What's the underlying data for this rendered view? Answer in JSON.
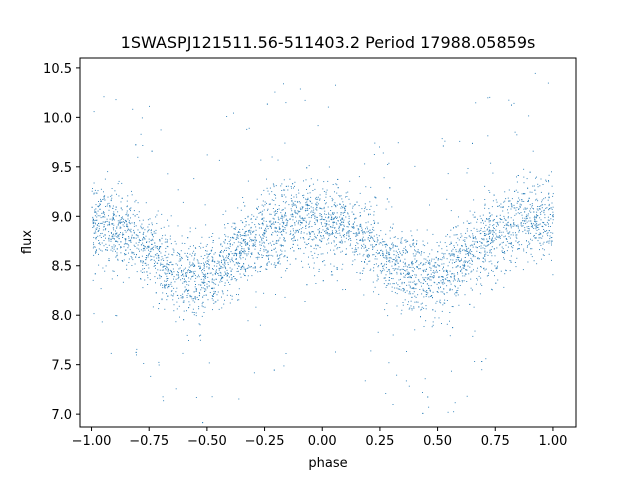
{
  "chart_data": {
    "type": "scatter",
    "title": "1SWASPJ121511.56-511403.2 Period 17988.05859s",
    "xlabel": "phase",
    "ylabel": "flux",
    "xlim": [
      -1.05,
      1.1
    ],
    "ylim": [
      6.87,
      10.6
    ],
    "grid": false,
    "point_color": "#1f77b4",
    "x_ticks": [
      {
        "value": -1.0,
        "label": "−1.00"
      },
      {
        "value": -0.75,
        "label": "−0.75"
      },
      {
        "value": -0.5,
        "label": "−0.50"
      },
      {
        "value": -0.25,
        "label": "−0.25"
      },
      {
        "value": 0.0,
        "label": "0.00"
      },
      {
        "value": 0.25,
        "label": "0.25"
      },
      {
        "value": 0.5,
        "label": "0.50"
      },
      {
        "value": 0.75,
        "label": "0.75"
      },
      {
        "value": 1.0,
        "label": "1.00"
      }
    ],
    "y_ticks": [
      {
        "value": 7.0,
        "label": "7.0"
      },
      {
        "value": 7.5,
        "label": "7.5"
      },
      {
        "value": 8.0,
        "label": "8.0"
      },
      {
        "value": 8.5,
        "label": "8.5"
      },
      {
        "value": 9.0,
        "label": "9.0"
      },
      {
        "value": 9.5,
        "label": "9.5"
      },
      {
        "value": 10.0,
        "label": "10.0"
      },
      {
        "value": 10.5,
        "label": "10.5"
      }
    ],
    "series": [
      {
        "x": [
          -1.0,
          -0.9,
          -0.8,
          -0.7,
          -0.6,
          -0.55,
          -0.5,
          -0.4,
          -0.3,
          -0.2,
          -0.1,
          0.0,
          0.1,
          0.2,
          0.3,
          0.4,
          0.45,
          0.5,
          0.6,
          0.7,
          0.8,
          0.9,
          1.0
        ],
        "y": [
          8.95,
          8.88,
          8.75,
          8.55,
          8.38,
          8.35,
          8.38,
          8.55,
          8.75,
          8.9,
          8.98,
          8.95,
          8.88,
          8.75,
          8.55,
          8.38,
          8.35,
          8.38,
          8.55,
          8.75,
          8.88,
          8.95,
          8.98
        ]
      }
    ]
  }
}
